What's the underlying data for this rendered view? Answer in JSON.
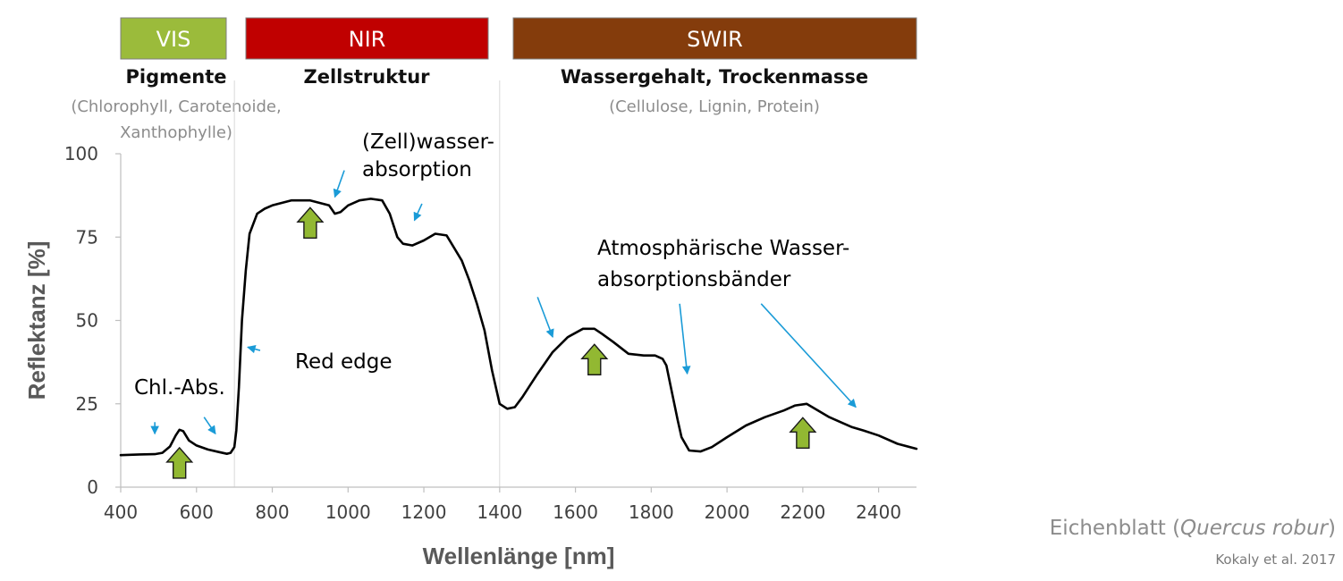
{
  "chart_data": {
    "type": "line",
    "title": "",
    "xlabel": "Wellenlänge [nm]",
    "ylabel": "Reflektanz [%]",
    "xlim": [
      400,
      2500
    ],
    "ylim": [
      0,
      100
    ],
    "xticks": [
      400,
      600,
      800,
      1000,
      1200,
      1400,
      1600,
      1800,
      2000,
      2200,
      2400
    ],
    "yticks": [
      0,
      25,
      50,
      75,
      100
    ],
    "grid": false,
    "series": [
      {
        "color": "#000000",
        "x": [
          400,
          450,
          490,
          510,
          530,
          545,
          555,
          565,
          580,
          600,
          630,
          660,
          680,
          690,
          700,
          705,
          712,
          720,
          730,
          740,
          760,
          780,
          800,
          850,
          900,
          950,
          965,
          980,
          1000,
          1030,
          1060,
          1090,
          1110,
          1130,
          1145,
          1170,
          1200,
          1230,
          1260,
          1300,
          1320,
          1340,
          1360,
          1380,
          1400,
          1420,
          1440,
          1460,
          1480,
          1500,
          1540,
          1580,
          1620,
          1650,
          1670,
          1700,
          1740,
          1780,
          1810,
          1830,
          1840,
          1850,
          1870,
          1880,
          1900,
          1930,
          1960,
          2000,
          2050,
          2100,
          2150,
          2180,
          2210,
          2240,
          2270,
          2300,
          2330,
          2360,
          2400,
          2450,
          2500
        ],
        "y": [
          9.6,
          9.8,
          9.9,
          10.3,
          12.2,
          15.5,
          17.2,
          16.8,
          14,
          12.5,
          11.3,
          10.5,
          10,
          10.3,
          12,
          17,
          30,
          50,
          65,
          76,
          82,
          83.5,
          84.5,
          86,
          86,
          84.5,
          82,
          82.5,
          84.5,
          86,
          86.5,
          86,
          82,
          75,
          73,
          72.5,
          74,
          76,
          75.5,
          68,
          62,
          55,
          47,
          35,
          25,
          23.5,
          24,
          27,
          30.5,
          34,
          40.5,
          45,
          47.5,
          47.5,
          46,
          43.5,
          40,
          39.5,
          39.5,
          38.5,
          36.5,
          31,
          20,
          15,
          11,
          10.7,
          12,
          15,
          18.5,
          21,
          23,
          24.5,
          25,
          23,
          21,
          19.5,
          18,
          17,
          15.5,
          13,
          11.5
        ]
      }
    ],
    "vlines": [
      700,
      1400
    ],
    "bands": [
      {
        "label": "VIS",
        "color": "#9bbb3b",
        "title": "Pigmente",
        "sub": [
          "(Chlorophyll, Carotenoide,",
          "Xanthophylle)"
        ]
      },
      {
        "label": "NIR",
        "color": "#c00000",
        "title": "Zellstruktur",
        "sub": []
      },
      {
        "label": "SWIR",
        "color": "#843c0c",
        "title": "Wassergehalt, Trockenmasse",
        "sub": [
          "(Cellulose, Lignin, Protein)"
        ]
      }
    ],
    "up_arrows": [
      {
        "x": 555,
        "y": 7,
        "color": "#92b832"
      },
      {
        "x": 900,
        "y": 79,
        "color": "#92b832"
      },
      {
        "x": 1650,
        "y": 38,
        "color": "#92b832"
      },
      {
        "x": 2200,
        "y": 16,
        "color": "#92b832"
      }
    ],
    "annotations": [
      {
        "text": "Chl.-Abs.",
        "lines": [
          "Chl.-Abs."
        ],
        "pointers": [
          [
            490,
            19.5,
            490,
            16
          ],
          [
            620,
            21,
            650,
            16
          ]
        ]
      },
      {
        "text": "Red edge",
        "lines": [
          "Red edge"
        ],
        "pointers": [
          [
            768,
            41,
            735,
            42
          ]
        ]
      },
      {
        "text": "(Zell)wasser-absorption",
        "lines": [
          "(Zell)wasser-",
          "absorption"
        ],
        "pointers": [
          [
            990,
            95,
            965,
            87
          ],
          [
            1195,
            85,
            1175,
            80
          ]
        ]
      },
      {
        "text": "Atmosphärische Wasser-absorptionsbänder",
        "lines": [
          "Atmosphärische Wasser-",
          "absorptionsbänder"
        ],
        "pointers": [
          [
            1500,
            57,
            1540,
            45
          ],
          [
            1875,
            55,
            1895,
            34
          ],
          [
            2090,
            55,
            2340,
            24
          ]
        ]
      }
    ],
    "arrow_color": "#1a9bd7"
  },
  "caption": {
    "text_before": "Eichenblatt (",
    "species": "Quercus robur",
    "text_after": ")"
  },
  "citation": "Kokaly et al. 2017"
}
